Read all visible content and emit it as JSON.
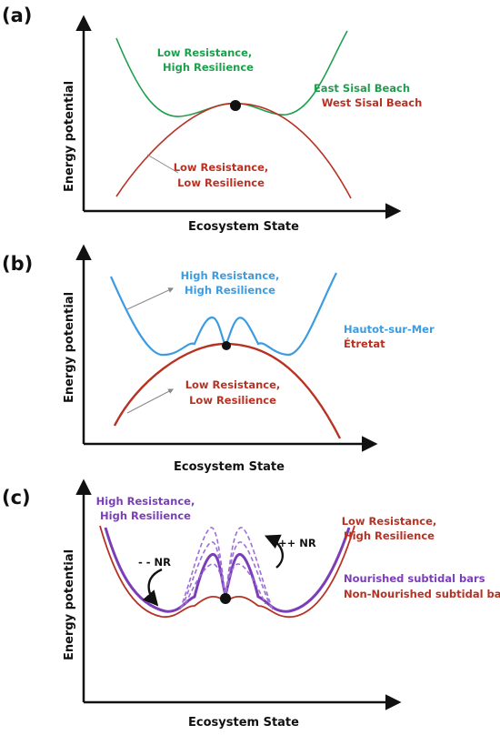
{
  "colors": {
    "green": "#1f9e4e",
    "red": "#b83224",
    "blue": "#3d9be0",
    "purple": "#7a3fb8",
    "purple_light": "#9c6fd6",
    "axis": "#111111",
    "arrow": "#888888"
  },
  "panels": [
    {
      "label": "(a)",
      "ylabel": "Energy potential",
      "xlabel": "Ecosystem State",
      "annotations": {
        "upper_line1": "Low Resistance,",
        "upper_line2": "High Resilience",
        "lower_line1": "Low Resistance,",
        "lower_line2": "Low Resilience"
      },
      "legend": [
        "East Sisal Beach",
        "West Sisal Beach"
      ]
    },
    {
      "label": "(b)",
      "ylabel": "Energy potential",
      "xlabel": "Ecosystem State",
      "annotations": {
        "upper_line1": "High Resistance,",
        "upper_line2": "High Resilience",
        "lower_line1": "Low Resistance,",
        "lower_line2": "Low Resilience"
      },
      "legend": [
        "Hautot-sur-Mer",
        "Étretat"
      ]
    },
    {
      "label": "(c)",
      "ylabel": "Energy potential",
      "xlabel": "Ecosystem State",
      "annotations": {
        "left_line1": "High Resistance,",
        "left_line2": "High Resilience",
        "right_line1": "Low Resistance,",
        "right_line2": "High Resilience",
        "minus": "- - NR",
        "plus": "++ NR"
      },
      "legend": [
        "Nourished subtidal bars",
        "Non-Nourished subtidal bars"
      ]
    }
  ]
}
